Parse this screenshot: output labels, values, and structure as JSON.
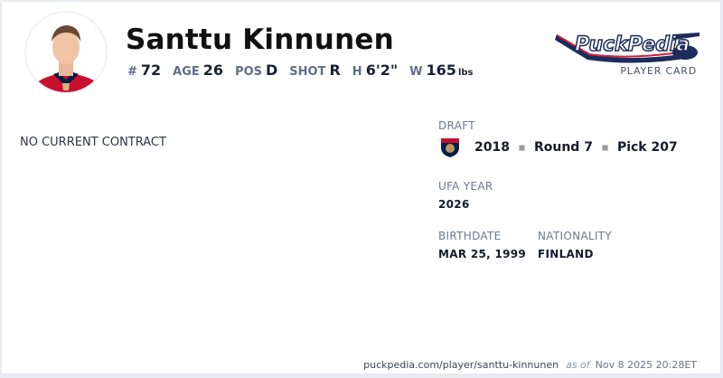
{
  "player": {
    "name": "Santtu Kinnunen",
    "stats": [
      {
        "label": "#",
        "value": "72"
      },
      {
        "label": "AGE",
        "value": "26"
      },
      {
        "label": "POS",
        "value": "D"
      },
      {
        "label": "SHOT",
        "value": "R"
      },
      {
        "label": "H",
        "value": "6'2\""
      },
      {
        "label": "W",
        "value": "165",
        "unit": "lbs"
      }
    ]
  },
  "brand": {
    "logo_text": "PuckPedia",
    "subtitle": "PLAYER CARD"
  },
  "contract": {
    "status": "NO CURRENT CONTRACT"
  },
  "draft": {
    "label": "DRAFT",
    "team_icon": "florida-panthers-logo",
    "year": "2018",
    "round": "Round 7",
    "pick": "Pick 207"
  },
  "ufa": {
    "label": "UFA YEAR",
    "value": "2026"
  },
  "birthdate": {
    "label": "BIRTHDATE",
    "value": "MAR 25, 1999"
  },
  "nationality": {
    "label": "NATIONALITY",
    "value": "FINLAND"
  },
  "footer": {
    "url": "puckpedia.com/player/santtu-kinnunen",
    "as_of": "as of",
    "timestamp": "Nov 8 2025 20:28ET"
  }
}
